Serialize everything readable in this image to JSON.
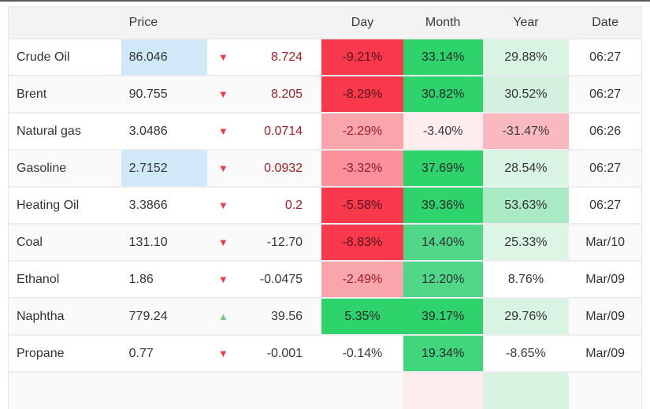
{
  "header": {
    "name": "",
    "price": "Price",
    "change": "",
    "day": "Day",
    "month": "Month",
    "year": "Year",
    "date": "Date"
  },
  "colors": {
    "accent_red_cell": "#f8394b",
    "accent_green_cell": "#2ed36c",
    "price_highlight_blue": "#cfe9f9",
    "arrow_red": "#f23b47",
    "arrow_green": "#7cc67d",
    "change_red_text": "#a41e22",
    "top_rule_gray": "#59595c"
  },
  "rows": [
    {
      "name": "Crude Oil",
      "price": "86.046",
      "price_highlight": true,
      "arrow": "down",
      "change": "8.724",
      "change_fg": "#a41e22",
      "day": "-9.21%",
      "day_bg": "#f8394b",
      "day_fg": "#53141b",
      "month": "33.14%",
      "month_bg": "#2ed36c",
      "month_fg": "#24292d",
      "year": "29.88%",
      "year_bg": "#d9f4e3",
      "year_fg": "#333333",
      "date": "06:27"
    },
    {
      "name": "Brent",
      "price": "90.755",
      "price_highlight": false,
      "arrow": "down",
      "change": "8.205",
      "change_fg": "#a41e22",
      "day": "-8.29%",
      "day_bg": "#f8394b",
      "day_fg": "#53141b",
      "month": "30.82%",
      "month_bg": "#2ed36c",
      "month_fg": "#24292d",
      "year": "30.52%",
      "year_bg": "#d3f1de",
      "year_fg": "#333333",
      "date": "06:27"
    },
    {
      "name": "Natural gas",
      "price": "3.0486",
      "price_highlight": false,
      "arrow": "down",
      "change": "0.0714",
      "change_fg": "#a41e22",
      "day": "-2.29%",
      "day_bg": "#f8a6ac",
      "day_fg": "#9c1b26",
      "month": "-3.40%",
      "month_bg": "#fdedef",
      "month_fg": "#3a3a3c",
      "year": "-31.47%",
      "year_bg": "#f9b9bf",
      "year_fg": "#3a3a3c",
      "date": "06:26"
    },
    {
      "name": "Gasoline",
      "price": "2.7152",
      "price_highlight": true,
      "arrow": "down",
      "change": "0.0932",
      "change_fg": "#a41e22",
      "day": "-3.32%",
      "day_bg": "#f9909a",
      "day_fg": "#8e1820",
      "month": "37.69%",
      "month_bg": "#2ed36c",
      "month_fg": "#24292d",
      "year": "28.54%",
      "year_bg": "#daf4e3",
      "year_fg": "#333333",
      "date": "06:27"
    },
    {
      "name": "Heating Oil",
      "price": "3.3866",
      "price_highlight": false,
      "arrow": "down",
      "change": "0.2",
      "change_fg": "#a41e22",
      "day": "-5.58%",
      "day_bg": "#f8394b",
      "day_fg": "#53141b",
      "month": "39.36%",
      "month_bg": "#2ed36c",
      "month_fg": "#24292d",
      "year": "53.63%",
      "year_bg": "#a9e9c4",
      "year_fg": "#333333",
      "date": "06:27"
    },
    {
      "name": "Coal",
      "price": "131.10",
      "price_highlight": false,
      "arrow": "down",
      "change": "-12.70",
      "change_fg": "#38383a",
      "day": "-8.83%",
      "day_bg": "#f8394b",
      "day_fg": "#53141b",
      "month": "14.40%",
      "month_bg": "#50d888",
      "month_fg": "#2b2f32",
      "year": "25.33%",
      "year_bg": "#dcf5e5",
      "year_fg": "#333333",
      "date": "Mar/10"
    },
    {
      "name": "Ethanol",
      "price": "1.86",
      "price_highlight": false,
      "arrow": "down",
      "change": "-0.0475",
      "change_fg": "#38383a",
      "day": "-2.49%",
      "day_bg": "#f8a6ac",
      "day_fg": "#9c1b26",
      "month": "12.20%",
      "month_bg": "#50d888",
      "month_fg": "#2b2f32",
      "year": "8.76%",
      "year_bg": "transparent",
      "year_fg": "#333333",
      "date": "Mar/09"
    },
    {
      "name": "Naphtha",
      "price": "779.24",
      "price_highlight": false,
      "arrow": "up",
      "change": "39.56",
      "change_fg": "#38383a",
      "day": "5.35%",
      "day_bg": "#2ed36c",
      "day_fg": "#24292d",
      "month": "39.17%",
      "month_bg": "#2ed36c",
      "month_fg": "#24292d",
      "year": "29.76%",
      "year_bg": "#d9f4e3",
      "year_fg": "#333333",
      "date": "Mar/09"
    },
    {
      "name": "Propane",
      "price": "0.77",
      "price_highlight": false,
      "arrow": "down",
      "change": "-0.001",
      "change_fg": "#38383a",
      "day": "-0.14%",
      "day_bg": "transparent",
      "day_fg": "#3a3a3c",
      "month": "19.34%",
      "month_bg": "#41d57c",
      "month_fg": "#24292d",
      "year": "-8.65%",
      "year_bg": "transparent",
      "year_fg": "#3a3a3c",
      "date": "Mar/09"
    }
  ],
  "partial_row": {
    "day_bg": "transparent",
    "month_bg": "#fdecec",
    "year_bg": "#d8f3e1"
  }
}
